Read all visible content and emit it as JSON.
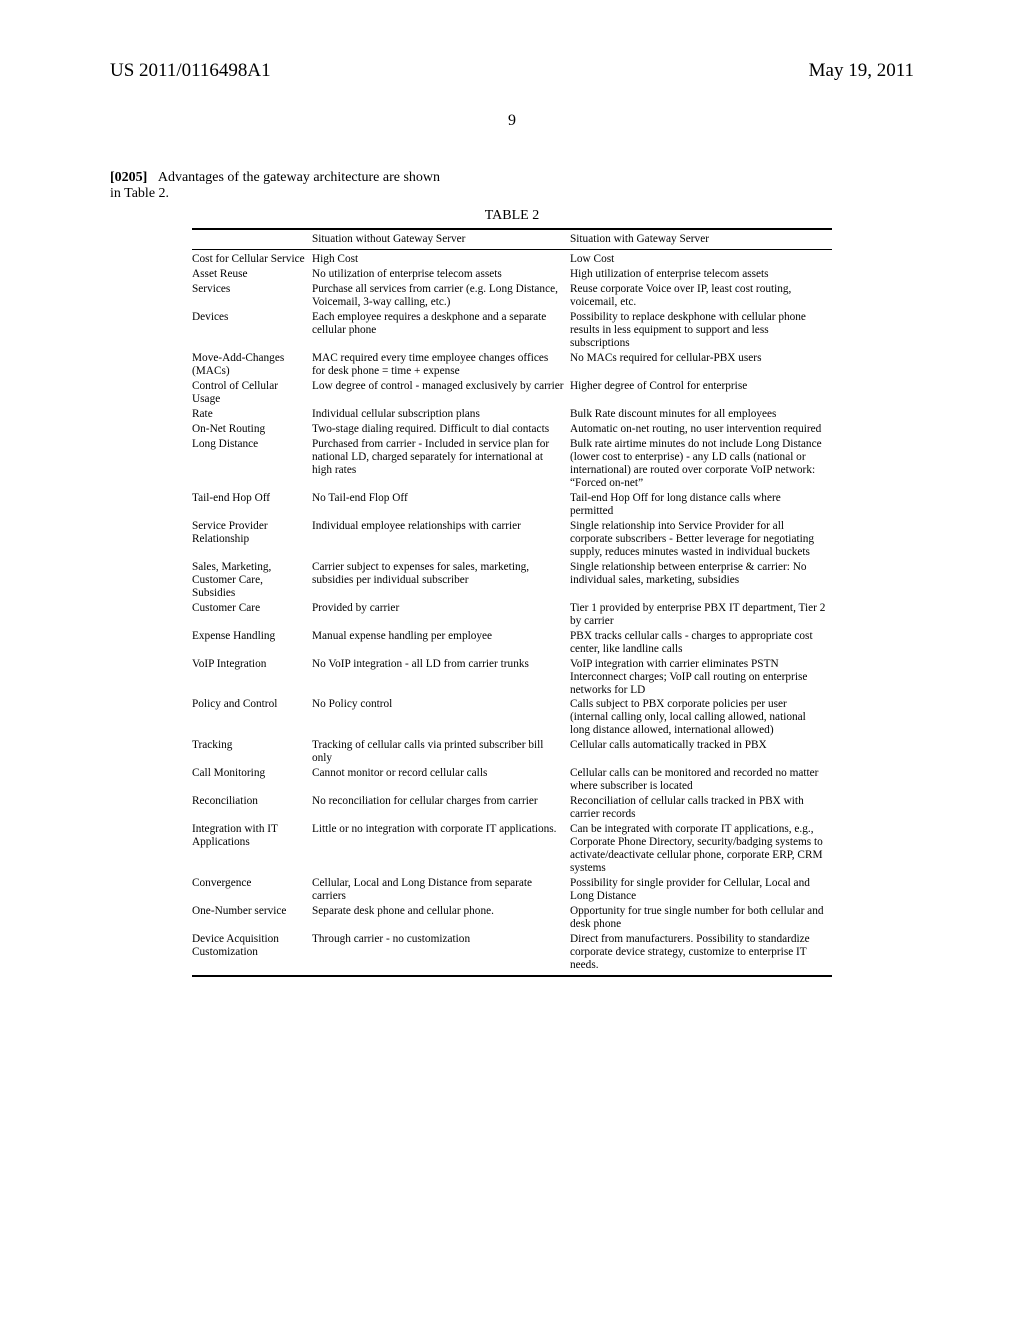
{
  "header": {
    "left": "US 2011/0116498A1",
    "right": "May 19, 2011"
  },
  "page_number": "9",
  "para": {
    "ref": "[0205]",
    "line1": "Advantages of the gateway architecture are shown",
    "line2": "in Table 2."
  },
  "table": {
    "title": "TABLE 2",
    "columns": [
      "",
      "Situation without Gateway Server",
      "Situation with Gateway Server"
    ],
    "rows": [
      [
        "Cost for Cellular Service",
        "High Cost",
        "Low Cost"
      ],
      [
        "Asset Reuse",
        "No utilization of enterprise telecom assets",
        "High utilization of enterprise telecom assets"
      ],
      [
        "Services",
        "Purchase all services from carrier (e.g. Long Distance, Voicemail, 3-way calling, etc.)",
        "Reuse corporate Voice over IP, least cost routing, voicemail, etc."
      ],
      [
        "Devices",
        "Each employee requires a deskphone and a separate cellular phone",
        "Possibility to replace deskphone with cellular phone results in less equipment to support and less subscriptions"
      ],
      [
        "Move-Add-Changes (MACs)",
        "MAC required every time employee changes offices for desk phone = time + expense",
        "No MACs required for cellular-PBX users"
      ],
      [
        "Control of Cellular Usage",
        "Low degree of control - managed exclusively by carrier",
        "Higher degree of Control for enterprise"
      ],
      [
        "Rate",
        "Individual cellular subscription plans",
        "Bulk Rate discount minutes for all employees"
      ],
      [
        "On-Net Routing",
        "Two-stage dialing required. Difficult to dial contacts",
        "Automatic on-net routing, no user intervention required"
      ],
      [
        "Long Distance",
        "Purchased from carrier - Included in service plan for national LD, charged separately for international at high rates",
        "Bulk rate airtime minutes do not include Long Distance (lower cost to enterprise) - any LD calls (national or international) are routed over corporate VoIP network: “Forced on-net”"
      ],
      [
        "Tail-end Hop Off",
        "No Tail-end Flop Off",
        "Tail-end Hop Off for long distance calls where permitted"
      ],
      [
        "Service Provider Relationship",
        "Individual employee relationships with carrier",
        "Single relationship into Service Provider for all corporate subscribers - Better leverage for negotiating supply, reduces minutes wasted in individual buckets"
      ],
      [
        "Sales, Marketing, Customer Care, Subsidies",
        "Carrier subject to expenses for sales, marketing, subsidies per individual subscriber",
        "Single relationship between enterprise & carrier: No individual sales, marketing, subsidies"
      ],
      [
        "Customer Care",
        "Provided by carrier",
        "Tier 1 provided by enterprise PBX IT department, Tier 2 by carrier"
      ],
      [
        "Expense Handling",
        "Manual expense handling per employee",
        "PBX tracks cellular calls - charges to appropriate cost center, like landline calls"
      ],
      [
        "VoIP Integration",
        "No VoIP integration - all LD from carrier trunks",
        "VoIP integration with carrier eliminates PSTN Interconnect charges; VoIP call routing on enterprise networks for LD"
      ],
      [
        "Policy and Control",
        "No Policy control",
        "Calls subject to PBX corporate policies per user (internal calling only, local calling allowed, national long distance allowed, international allowed)"
      ],
      [
        "Tracking",
        "Tracking of cellular calls via printed subscriber bill only",
        "Cellular calls automatically tracked in PBX"
      ],
      [
        "Call Monitoring",
        "Cannot monitor or record cellular calls",
        "Cellular calls can be monitored and recorded no matter where subscriber is located"
      ],
      [
        "Reconciliation",
        "No reconciliation for cellular charges from carrier",
        "Reconciliation of cellular calls tracked in PBX with carrier records"
      ],
      [
        "Integration with IT Applications",
        "Little or no integration with corporate IT applications.",
        "Can be integrated with corporate IT applications, e.g., Corporate Phone Directory, security/badging systems to activate/deactivate cellular phone, corporate ERP, CRM systems"
      ],
      [
        "Convergence",
        "Cellular, Local and Long Distance from separate carriers",
        "Possibility for single provider for Cellular, Local and Long Distance"
      ],
      [
        "One-Number service",
        "Separate desk phone and cellular phone.",
        "Opportunity for true single number for both cellular and desk phone"
      ],
      [
        "Device Acquisition Customization",
        "Through carrier - no customization",
        "Direct from manufacturers. Possibility to standardize corporate device strategy, customize to enterprise IT needs."
      ]
    ]
  }
}
